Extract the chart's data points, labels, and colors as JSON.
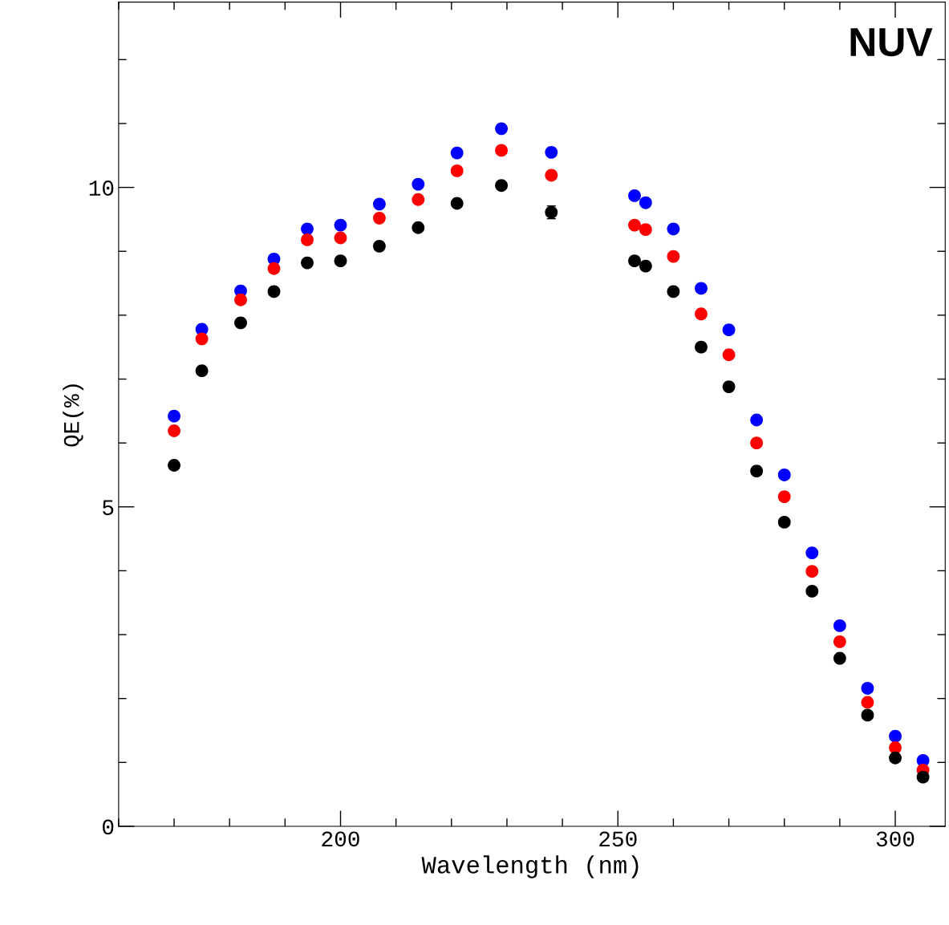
{
  "chart_data": {
    "type": "scatter",
    "xlabel": "Wavelength (nm)",
    "ylabel": "QE(%)",
    "annotations": [
      "NUV"
    ],
    "x": [
      170,
      175,
      182,
      188,
      194,
      200,
      207,
      214,
      221,
      229,
      238,
      253,
      255,
      260,
      265,
      270,
      275,
      280,
      285,
      290,
      295,
      300,
      305
    ],
    "series": [
      {
        "color": "#0000ff",
        "values": [
          6.42,
          7.78,
          8.38,
          8.88,
          9.35,
          9.41,
          9.74,
          10.05,
          10.54,
          10.92,
          10.55,
          9.87,
          9.76,
          9.35,
          8.42,
          7.77,
          6.36,
          5.5,
          4.28,
          3.14,
          2.16,
          1.41,
          1.03
        ]
      },
      {
        "color": "#ff0000",
        "values": [
          6.19,
          7.63,
          8.24,
          8.73,
          9.18,
          9.21,
          9.52,
          9.81,
          10.26,
          10.58,
          10.19,
          9.41,
          9.34,
          8.92,
          8.02,
          7.38,
          6.0,
          5.16,
          3.99,
          2.89,
          1.94,
          1.23,
          0.88
        ]
      },
      {
        "color": "#000000",
        "values": [
          5.65,
          7.13,
          7.88,
          8.37,
          8.82,
          8.85,
          9.08,
          9.37,
          9.75,
          10.03,
          9.61,
          8.85,
          8.77,
          8.37,
          7.5,
          6.88,
          5.56,
          4.76,
          3.68,
          2.63,
          1.74,
          1.07,
          0.77
        ],
        "errors": [
          null,
          null,
          null,
          null,
          null,
          null,
          null,
          null,
          null,
          null,
          0.1,
          null,
          null,
          null,
          null,
          null,
          null,
          null,
          null,
          null,
          null,
          null,
          null
        ]
      }
    ],
    "xlim": [
      160,
      309
    ],
    "ylim": [
      0,
      12.9
    ],
    "xticks": [
      200,
      250,
      300
    ],
    "yticks": [
      0,
      5,
      10
    ],
    "marker": "circle",
    "grid": false,
    "legend": false
  }
}
